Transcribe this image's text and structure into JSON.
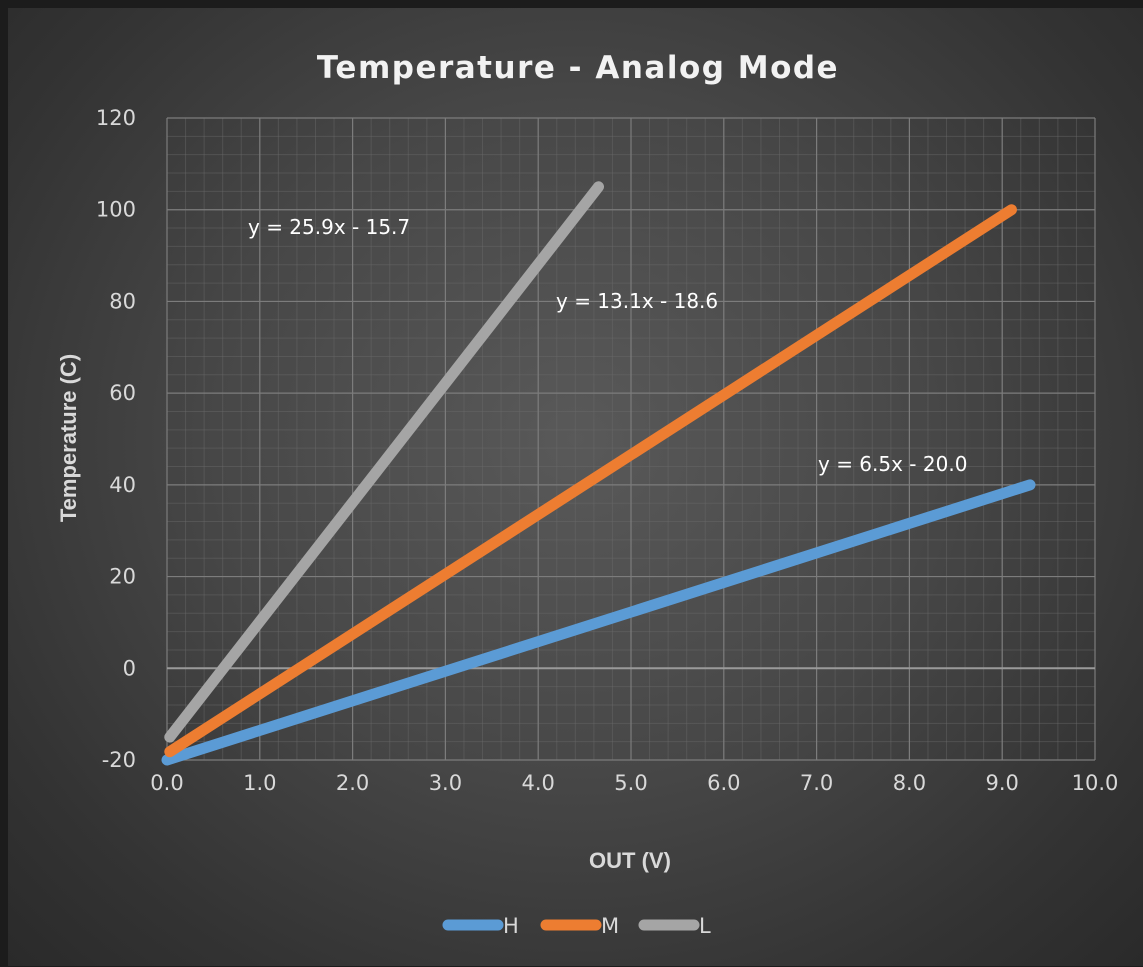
{
  "chart_data": {
    "type": "line",
    "title": "Temperature - Analog Mode",
    "xlabel": "OUT (V)",
    "ylabel": "Temperature (C)",
    "xlim": [
      0,
      10
    ],
    "ylim": [
      -20,
      120
    ],
    "x_ticks": [
      "0.0",
      "1.0",
      "2.0",
      "3.0",
      "4.0",
      "5.0",
      "6.0",
      "7.0",
      "8.0",
      "9.0",
      "10.0"
    ],
    "y_ticks": [
      "-20",
      "0",
      "20",
      "40",
      "60",
      "80",
      "100",
      "120"
    ],
    "grid": true,
    "legend_position": "bottom",
    "series": [
      {
        "name": "H",
        "color": "#5b9bd5",
        "points": [
          [
            0,
            -20
          ],
          [
            9.3,
            40
          ]
        ],
        "equation": "y = 6.5x - 20.0"
      },
      {
        "name": "M",
        "color": "#ed7d31",
        "points": [
          [
            0.03,
            -18.2
          ],
          [
            9.1,
            100
          ]
        ],
        "equation": "y = 13.1x - 18.6"
      },
      {
        "name": "L",
        "color": "#a5a5a5",
        "points": [
          [
            0.03,
            -15
          ],
          [
            4.65,
            105
          ]
        ],
        "equation": "y = 25.9x - 15.7"
      }
    ]
  }
}
